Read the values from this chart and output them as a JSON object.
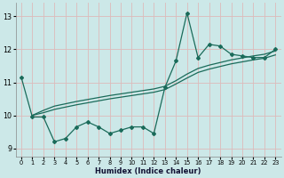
{
  "xlabel": "Humidex (Indice chaleur)",
  "bg_color": "#cce8e8",
  "grid_color": "#ddbaba",
  "line_color": "#1a6b5a",
  "xlim": [
    -0.5,
    23.5
  ],
  "ylim": [
    8.75,
    13.4
  ],
  "xticks": [
    0,
    1,
    2,
    3,
    4,
    5,
    6,
    7,
    8,
    9,
    10,
    11,
    12,
    13,
    14,
    15,
    16,
    17,
    18,
    19,
    20,
    21,
    22,
    23
  ],
  "yticks": [
    9,
    10,
    11,
    12,
    13
  ],
  "zigzag_x": [
    0,
    1,
    2,
    3,
    4,
    5,
    6,
    7,
    8,
    9,
    10,
    11,
    12,
    13,
    14,
    15,
    16,
    17,
    18,
    19,
    20,
    21,
    22,
    23
  ],
  "zigzag_y": [
    11.15,
    9.95,
    9.95,
    9.2,
    9.3,
    9.65,
    9.8,
    9.65,
    9.45,
    9.55,
    9.65,
    9.65,
    9.45,
    10.85,
    11.65,
    13.1,
    11.75,
    12.15,
    12.1,
    11.85,
    11.8,
    11.75,
    11.75,
    12.0
  ],
  "trend1_x": [
    1,
    2,
    3,
    4,
    5,
    6,
    7,
    8,
    9,
    10,
    11,
    12,
    13,
    14,
    15,
    16,
    17,
    18,
    19,
    20,
    21,
    22,
    23
  ],
  "trend1_y": [
    10.0,
    10.15,
    10.28,
    10.35,
    10.42,
    10.48,
    10.54,
    10.6,
    10.65,
    10.7,
    10.75,
    10.8,
    10.88,
    11.05,
    11.25,
    11.42,
    11.52,
    11.6,
    11.68,
    11.74,
    11.8,
    11.85,
    11.95
  ],
  "trend2_x": [
    1,
    2,
    3,
    4,
    5,
    6,
    7,
    8,
    9,
    10,
    11,
    12,
    13,
    14,
    15,
    16,
    17,
    18,
    19,
    20,
    21,
    22,
    23
  ],
  "trend2_y": [
    10.0,
    10.08,
    10.18,
    10.25,
    10.32,
    10.38,
    10.44,
    10.5,
    10.55,
    10.6,
    10.65,
    10.7,
    10.78,
    10.95,
    11.13,
    11.3,
    11.4,
    11.48,
    11.56,
    11.62,
    11.68,
    11.73,
    11.83
  ]
}
